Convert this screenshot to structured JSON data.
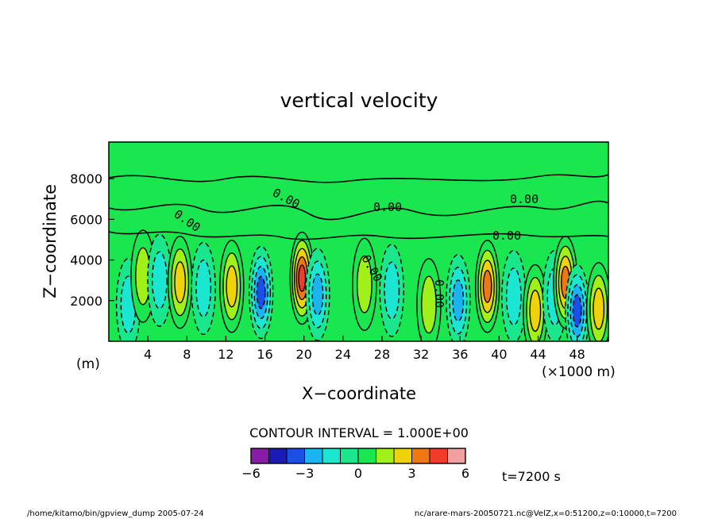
{
  "chart_data": {
    "type": "heatmap",
    "title": "vertical velocity",
    "xlabel": "X−coordinate",
    "ylabel": "Z−coordinate",
    "x_unit": "(×1000 m)",
    "y_unit": "(m)",
    "xlim": [
      0,
      51.2
    ],
    "ylim": [
      0,
      9800
    ],
    "x_ticks": [
      4,
      8,
      12,
      16,
      20,
      24,
      28,
      32,
      36,
      40,
      44,
      48
    ],
    "y_ticks": [
      2000,
      4000,
      6000,
      8000
    ],
    "contour_interval": "CONTOUR INTERVAL = 1.000E+00",
    "contour_labels": [
      "0.00",
      "0.00",
      "0.00",
      "0.00",
      "0.00",
      "0.00",
      "0.00"
    ],
    "colorbar": {
      "ticks": [
        "−6",
        "−3",
        "0",
        "3",
        "6"
      ],
      "min": -6,
      "max": 6,
      "colors": [
        "#8a1aa8",
        "#1a1ab4",
        "#1a50e8",
        "#1ab4f0",
        "#1ae6d2",
        "#1ae68c",
        "#1ae650",
        "#a0f01a",
        "#f0d20a",
        "#f07814",
        "#f03c28",
        "#f0a0a0"
      ]
    },
    "time_label": "t=7200 s",
    "wave_cells": [
      {
        "x": 2.0,
        "z": 1800,
        "value": -1.4
      },
      {
        "x": 3.5,
        "z": 3200,
        "value": 1.6
      },
      {
        "x": 5.2,
        "z": 3000,
        "value": -1.8
      },
      {
        "x": 7.3,
        "z": 2900,
        "value": 2.8
      },
      {
        "x": 9.7,
        "z": 2600,
        "value": -1.5
      },
      {
        "x": 12.6,
        "z": 2700,
        "value": 3.0
      },
      {
        "x": 15.6,
        "z": 2400,
        "value": -3.5
      },
      {
        "x": 19.8,
        "z": 3100,
        "value": 4.2
      },
      {
        "x": 21.4,
        "z": 2300,
        "value": -2.2
      },
      {
        "x": 26.2,
        "z": 2800,
        "value": 1.3
      },
      {
        "x": 29.0,
        "z": 2500,
        "value": -2.0
      },
      {
        "x": 32.8,
        "z": 1800,
        "value": 1.2
      },
      {
        "x": 35.8,
        "z": 2000,
        "value": -2.6
      },
      {
        "x": 38.8,
        "z": 2700,
        "value": 3.1
      },
      {
        "x": 41.5,
        "z": 2200,
        "value": -1.6
      },
      {
        "x": 43.7,
        "z": 1500,
        "value": 2.2
      },
      {
        "x": 45.7,
        "z": 2200,
        "value": -1.8
      },
      {
        "x": 46.8,
        "z": 2900,
        "value": 3.4
      },
      {
        "x": 48.0,
        "z": 1500,
        "value": -3.6
      },
      {
        "x": 50.2,
        "z": 1600,
        "value": 2.2
      }
    ]
  },
  "footer": {
    "left": "/home/kitamo/bin/gpview_dump  2005-07-24",
    "right": "nc/arare-mars-20050721.nc@VelZ,x=0:51200,z=0:10000,t=7200"
  }
}
